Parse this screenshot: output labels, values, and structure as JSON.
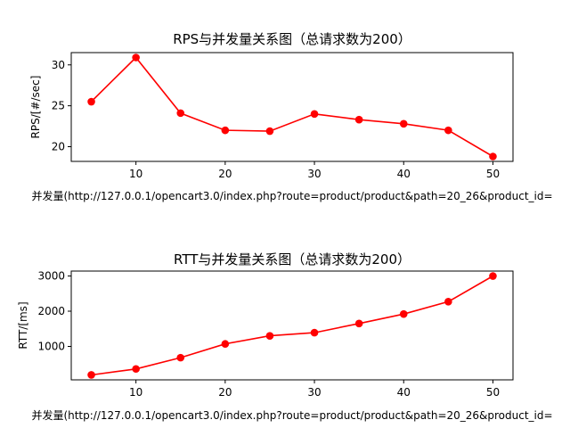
{
  "chart_data": [
    {
      "type": "line",
      "title": "RPS与并发量关系图（总请求数为200）",
      "xlabel": "并发量(http://127.0.0.1/opencart3.0/index.php?route=product/product&path=20_26&product_id=",
      "ylabel": "RPS/[#/sec]",
      "x": [
        5,
        10,
        15,
        20,
        25,
        30,
        35,
        40,
        45,
        50
      ],
      "series": [
        {
          "values": [
            25.5,
            30.9,
            24.1,
            22.0,
            21.9,
            24.0,
            23.3,
            22.8,
            22.0,
            18.8
          ]
        }
      ],
      "color": "#ff0000",
      "xlim": [
        2.75,
        52.25
      ],
      "ylim": [
        18.2,
        31.5
      ],
      "xticks": [
        10,
        20,
        30,
        40,
        50
      ],
      "yticks": [
        20,
        25,
        30
      ],
      "grid": false
    },
    {
      "type": "line",
      "title": "RTT与并发量关系图（总请求数为200）",
      "xlabel": "并发量(http://127.0.0.1/opencart3.0/index.php?route=product/product&path=20_26&product_id=",
      "ylabel": "RTT/[ms]",
      "x": [
        5,
        10,
        15,
        20,
        25,
        30,
        35,
        40,
        45,
        50
      ],
      "series": [
        {
          "values": [
            190,
            360,
            680,
            1070,
            1300,
            1390,
            1650,
            1920,
            2270,
            3000
          ]
        }
      ],
      "color": "#ff0000",
      "xlim": [
        2.75,
        52.25
      ],
      "ylim": [
        50,
        3140
      ],
      "xticks": [
        10,
        20,
        30,
        40,
        50
      ],
      "yticks": [
        1000,
        2000,
        3000
      ],
      "grid": false
    }
  ]
}
